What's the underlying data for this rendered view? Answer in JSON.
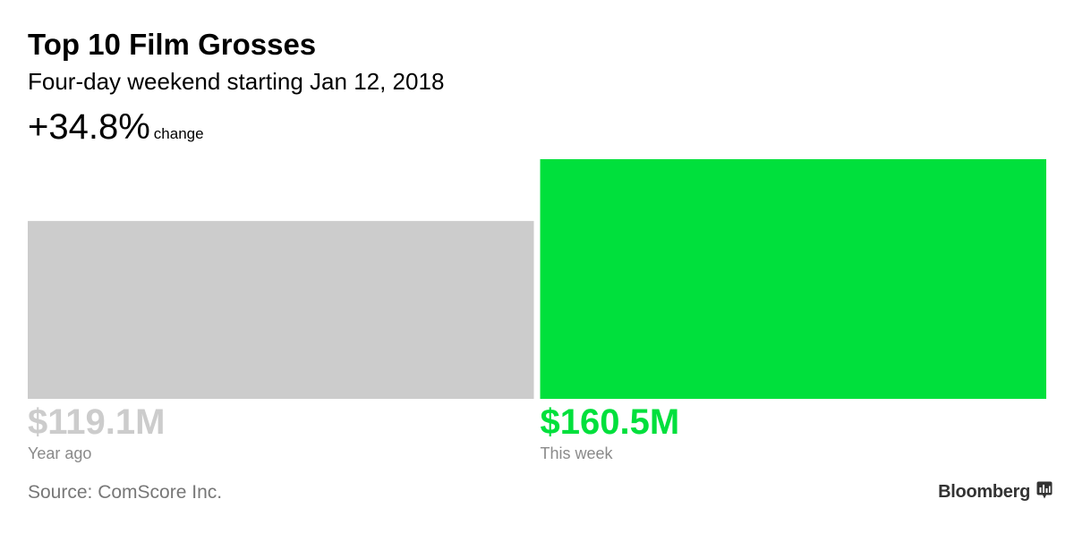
{
  "header": {
    "title": "Top 10 Film Grosses",
    "subtitle": "Four-day weekend starting Jan 12, 2018",
    "change_value": "+34.8%",
    "change_label": "change"
  },
  "footer": {
    "source": "Source: ComScore Inc.",
    "brand": "Bloomberg",
    "brand_icon": "bloomberg-chart-icon"
  },
  "colors": {
    "year_ago": "#cccccc",
    "this_week": "#00e03c"
  },
  "chart_data": {
    "type": "bar",
    "categories": [
      "Year ago",
      "This week"
    ],
    "values": [
      119.1,
      160.5
    ],
    "value_labels": [
      "$119.1M",
      "$160.5M"
    ],
    "unit": "million USD",
    "title": "Top 10 Film Grosses",
    "subtitle": "Four-day weekend starting Jan 12, 2018",
    "grid": false,
    "legend": "none"
  }
}
